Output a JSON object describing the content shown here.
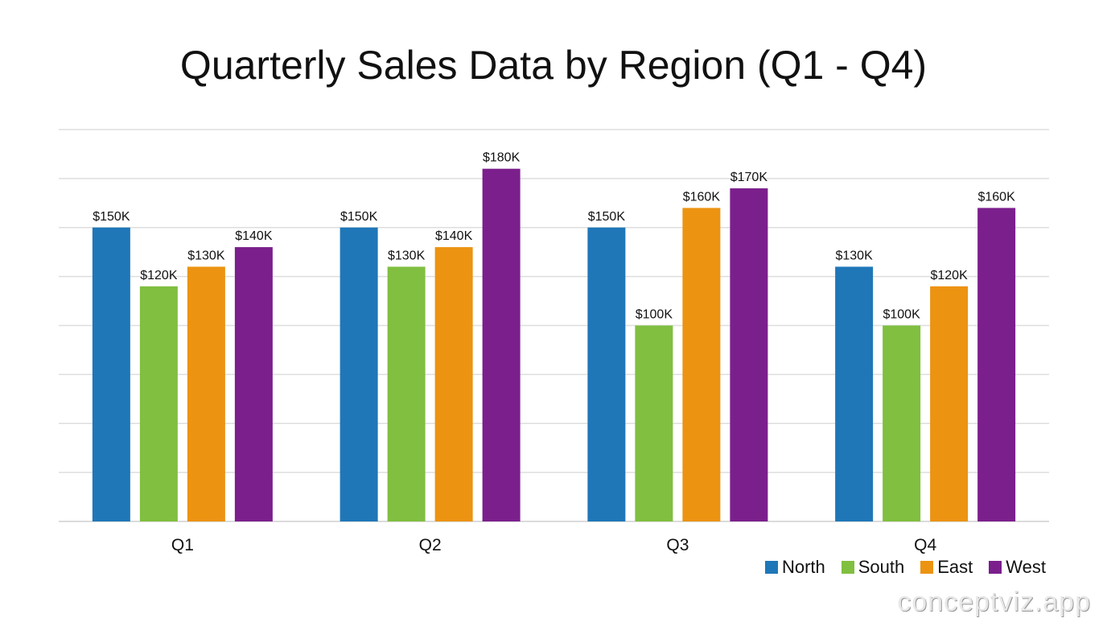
{
  "chart_data": {
    "type": "bar",
    "title": "Quarterly Sales Data by Region (Q1 - Q4)",
    "xlabel": "",
    "ylabel": "",
    "categories": [
      "Q1",
      "Q2",
      "Q3",
      "Q4"
    ],
    "ylim": [
      0,
      200
    ],
    "grid": true,
    "legend_position": "bottom-right",
    "series": [
      {
        "name": "North",
        "color": "#1f77b8",
        "values": [
          150,
          150,
          150,
          130
        ],
        "labels": [
          "$150K",
          "$150K",
          "$150K",
          "$130K"
        ]
      },
      {
        "name": "South",
        "color": "#80bf40",
        "values": [
          120,
          130,
          100,
          100
        ],
        "labels": [
          "$120K",
          "$130K",
          "$100K",
          "$100K"
        ]
      },
      {
        "name": "East",
        "color": "#ec9312",
        "values": [
          130,
          140,
          160,
          120
        ],
        "labels": [
          "$130K",
          "$140K",
          "$160K",
          "$120K"
        ]
      },
      {
        "name": "West",
        "color": "#7b1f8c",
        "values": [
          140,
          180,
          170,
          160
        ],
        "labels": [
          "$140K",
          "$180K",
          "$170K",
          "$160K"
        ]
      }
    ]
  },
  "watermark": "conceptviz.app"
}
